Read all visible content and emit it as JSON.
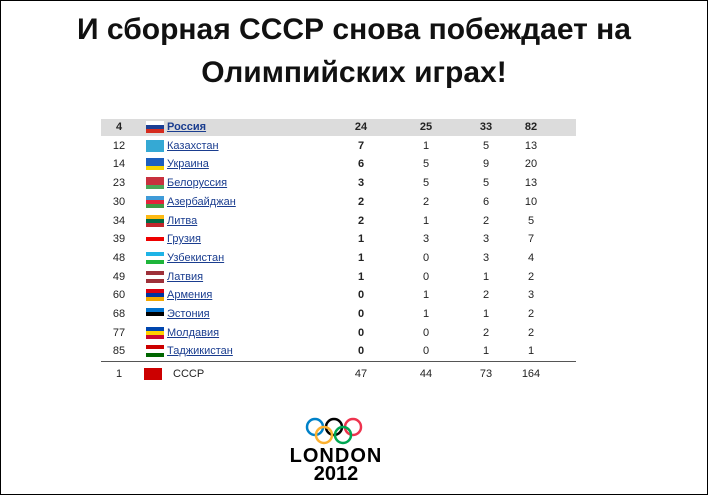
{
  "header": {
    "title_line1": "И сборная СССР снова побеждает на",
    "title_line2": "Олимпийских играх!"
  },
  "table": {
    "rows": [
      [
        4,
        "Россия",
        24,
        25,
        33,
        82
      ],
      [
        12,
        "Казахстан",
        7,
        1,
        5,
        13
      ],
      [
        14,
        "Украина",
        6,
        5,
        9,
        20
      ],
      [
        23,
        "Белоруссия",
        3,
        5,
        5,
        13
      ],
      [
        30,
        "Азербайджан",
        2,
        2,
        6,
        10
      ],
      [
        34,
        "Литва",
        2,
        1,
        2,
        5
      ],
      [
        39,
        "Грузия",
        1,
        3,
        3,
        7
      ],
      [
        48,
        "Узбекистан",
        1,
        0,
        3,
        4
      ],
      [
        49,
        "Латвия",
        1,
        0,
        1,
        2
      ],
      [
        60,
        "Армения",
        0,
        1,
        2,
        3
      ],
      [
        68,
        "Эстония",
        0,
        1,
        1,
        2
      ],
      [
        77,
        "Молдавия",
        0,
        0,
        2,
        2
      ],
      [
        85,
        "Таджикистан",
        0,
        0,
        1,
        1
      ]
    ],
    "total": [
      1,
      "СССР",
      47,
      44,
      73,
      164
    ]
  },
  "logo": {
    "word": "LONDON",
    "year": "2012"
  }
}
